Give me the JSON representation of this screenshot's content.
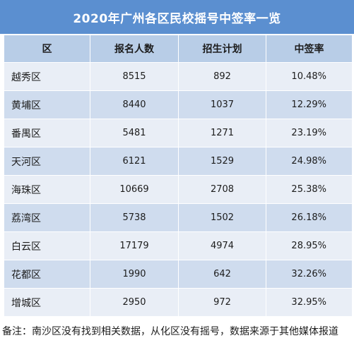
{
  "title": "2020年广州各区民校摇号中签率一览",
  "table": {
    "headers": [
      "区",
      "报名人数",
      "招生计划",
      "中签率"
    ],
    "rows": [
      {
        "district": "越秀区",
        "applicants": "8515",
        "plan": "892",
        "rate": "10.48%"
      },
      {
        "district": "黄埔区",
        "applicants": "8440",
        "plan": "1037",
        "rate": "12.29%"
      },
      {
        "district": "番禺区",
        "applicants": "5481",
        "plan": "1271",
        "rate": "23.19%"
      },
      {
        "district": "天河区",
        "applicants": "6121",
        "plan": "1529",
        "rate": "24.98%"
      },
      {
        "district": "海珠区",
        "applicants": "10669",
        "plan": "2708",
        "rate": "25.38%"
      },
      {
        "district": "荔湾区",
        "applicants": "5738",
        "plan": "1502",
        "rate": "26.18%"
      },
      {
        "district": "白云区",
        "applicants": "17179",
        "plan": "4974",
        "rate": "28.95%"
      },
      {
        "district": "花都区",
        "applicants": "1990",
        "plan": "642",
        "rate": "32.26%"
      },
      {
        "district": "增城区",
        "applicants": "2950",
        "plan": "972",
        "rate": "32.95%"
      }
    ]
  },
  "note": "备注：南沙区没有找到相关数据，从化区没有摇号，数据来源于其他媒体报道"
}
